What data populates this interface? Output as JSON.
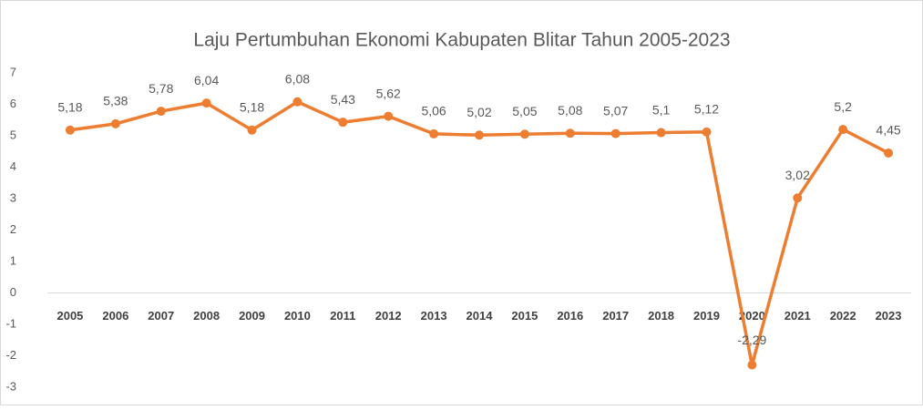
{
  "chart_data": {
    "type": "line",
    "title": "Laju Pertumbuhan  Ekonomi Kabupaten Blitar Tahun 2005-2023",
    "categories": [
      "2005",
      "2006",
      "2007",
      "2008",
      "2009",
      "2010",
      "2011",
      "2012",
      "2013",
      "2014",
      "2015",
      "2016",
      "2017",
      "2018",
      "2019",
      "2020",
      "2021",
      "2022",
      "2023"
    ],
    "series": [
      {
        "name": "Laju Pertumbuhan Ekonomi",
        "color": "#ED7D31",
        "values": [
          5.18,
          5.38,
          5.78,
          6.04,
          5.18,
          6.08,
          5.43,
          5.62,
          5.06,
          5.02,
          5.05,
          5.08,
          5.07,
          5.1,
          5.12,
          -2.29,
          3.02,
          5.2,
          4.45
        ],
        "value_labels": [
          "5,18",
          "5,38",
          "5,78",
          "6,04",
          "5,18",
          "6,08",
          "5,43",
          "5,62",
          "5,06",
          "5,02",
          "5,05",
          "5,08",
          "5,07",
          "5,1",
          "5,12",
          "-2,29",
          "3,02",
          "5,2",
          "4,45"
        ]
      }
    ],
    "ylim": [
      -3,
      7
    ],
    "yticks": [
      -3,
      -2,
      -1,
      0,
      1,
      2,
      3,
      4,
      5,
      6,
      7
    ],
    "grid": false
  }
}
